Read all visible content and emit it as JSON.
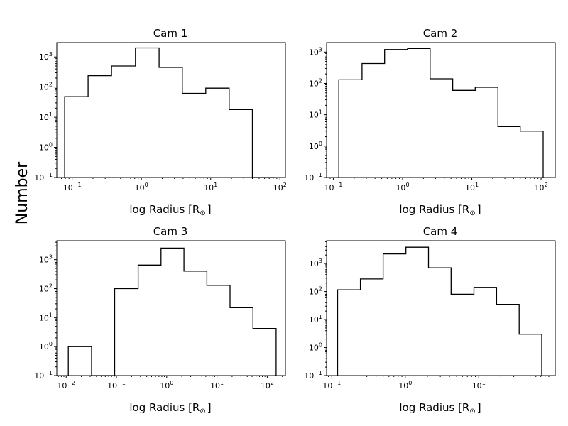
{
  "figure": {
    "ylabel": "Number"
  },
  "chart_data": [
    {
      "type": "histogram",
      "title": "Cam 1",
      "xlabel": "log Radius [R",
      "xlabel_suffix": "]",
      "xscale": "log",
      "yscale": "log",
      "xlim": [
        0.06,
        120
      ],
      "ylim": [
        0.1,
        3000
      ],
      "x_ticks": [
        {
          "value": 0.1,
          "mant": "10",
          "exp": "−1"
        },
        {
          "value": 1,
          "mant": "10",
          "exp": "0"
        },
        {
          "value": 10,
          "mant": "10",
          "exp": "1"
        },
        {
          "value": 100,
          "mant": "10",
          "exp": "2"
        }
      ],
      "y_ticks": [
        {
          "value": 0.1,
          "mant": "10",
          "exp": "−1"
        },
        {
          "value": 1,
          "mant": "10",
          "exp": "0"
        },
        {
          "value": 10,
          "mant": "10",
          "exp": "1"
        },
        {
          "value": 100,
          "mant": "10",
          "exp": "2"
        },
        {
          "value": 1000,
          "mant": "10",
          "exp": "3"
        }
      ],
      "bin_edges": [
        0.078,
        0.17,
        0.37,
        0.82,
        1.8,
        3.9,
        8.5,
        18.5,
        40,
        87
      ],
      "counts": [
        48,
        240,
        500,
        2000,
        450,
        62,
        92,
        18,
        0.1
      ]
    },
    {
      "type": "histogram",
      "title": "Cam 2",
      "xlabel": "log Radius [R",
      "xlabel_suffix": "]",
      "xscale": "log",
      "yscale": "log",
      "xlim": [
        0.08,
        160
      ],
      "ylim": [
        0.1,
        2000
      ],
      "x_ticks": [
        {
          "value": 0.1,
          "mant": "10",
          "exp": "−1"
        },
        {
          "value": 1,
          "mant": "10",
          "exp": "0"
        },
        {
          "value": 10,
          "mant": "10",
          "exp": "1"
        },
        {
          "value": 100,
          "mant": "10",
          "exp": "2"
        }
      ],
      "y_ticks": [
        {
          "value": 0.1,
          "mant": "10",
          "exp": "−1"
        },
        {
          "value": 1,
          "mant": "10",
          "exp": "0"
        },
        {
          "value": 10,
          "mant": "10",
          "exp": "1"
        },
        {
          "value": 100,
          "mant": "10",
          "exp": "2"
        },
        {
          "value": 1000,
          "mant": "10",
          "exp": "3"
        }
      ],
      "bin_edges": [
        0.12,
        0.26,
        0.55,
        1.18,
        2.5,
        5.3,
        11.2,
        23.8,
        50,
        107
      ],
      "counts": [
        130,
        430,
        1200,
        1300,
        140,
        60,
        75,
        4.2,
        3
      ]
    },
    {
      "type": "histogram",
      "title": "Cam 3",
      "xlabel": "log Radius [R",
      "xlabel_suffix": "]",
      "xscale": "log",
      "yscale": "log",
      "xlim": [
        0.0065,
        230
      ],
      "ylim": [
        0.1,
        4500
      ],
      "x_ticks": [
        {
          "value": 0.01,
          "mant": "10",
          "exp": "−2"
        },
        {
          "value": 0.1,
          "mant": "10",
          "exp": "−1"
        },
        {
          "value": 1,
          "mant": "10",
          "exp": "0"
        },
        {
          "value": 10,
          "mant": "10",
          "exp": "1"
        },
        {
          "value": 100,
          "mant": "10",
          "exp": "2"
        }
      ],
      "y_ticks": [
        {
          "value": 0.1,
          "mant": "10",
          "exp": "−1"
        },
        {
          "value": 1,
          "mant": "10",
          "exp": "0"
        },
        {
          "value": 10,
          "mant": "10",
          "exp": "1"
        },
        {
          "value": 100,
          "mant": "10",
          "exp": "2"
        },
        {
          "value": 1000,
          "mant": "10",
          "exp": "3"
        }
      ],
      "bin_edges": [
        0.011,
        0.032,
        0.092,
        0.27,
        0.77,
        2.2,
        6.3,
        18.2,
        52,
        150
      ],
      "counts": [
        1,
        0.1,
        100,
        650,
        2500,
        400,
        130,
        22,
        4.2
      ]
    },
    {
      "type": "histogram",
      "title": "Cam 4",
      "xlabel": "log Radius [R",
      "xlabel_suffix": "]",
      "xscale": "log",
      "yscale": "log",
      "xlim": [
        0.085,
        110
      ],
      "ylim": [
        0.1,
        6500
      ],
      "x_ticks": [
        {
          "value": 0.1,
          "mant": "10",
          "exp": "−1"
        },
        {
          "value": 1,
          "mant": "10",
          "exp": "0"
        },
        {
          "value": 10,
          "mant": "10",
          "exp": "1"
        }
      ],
      "y_ticks": [
        {
          "value": 0.1,
          "mant": "10",
          "exp": "−1"
        },
        {
          "value": 1,
          "mant": "10",
          "exp": "0"
        },
        {
          "value": 10,
          "mant": "10",
          "exp": "1"
        },
        {
          "value": 100,
          "mant": "10",
          "exp": "2"
        },
        {
          "value": 1000,
          "mant": "10",
          "exp": "3"
        }
      ],
      "bin_edges": [
        0.12,
        0.245,
        0.5,
        1.02,
        2.07,
        4.2,
        8.6,
        17.5,
        35.5,
        72
      ],
      "counts": [
        115,
        280,
        2200,
        3800,
        700,
        80,
        140,
        35,
        3
      ]
    }
  ]
}
